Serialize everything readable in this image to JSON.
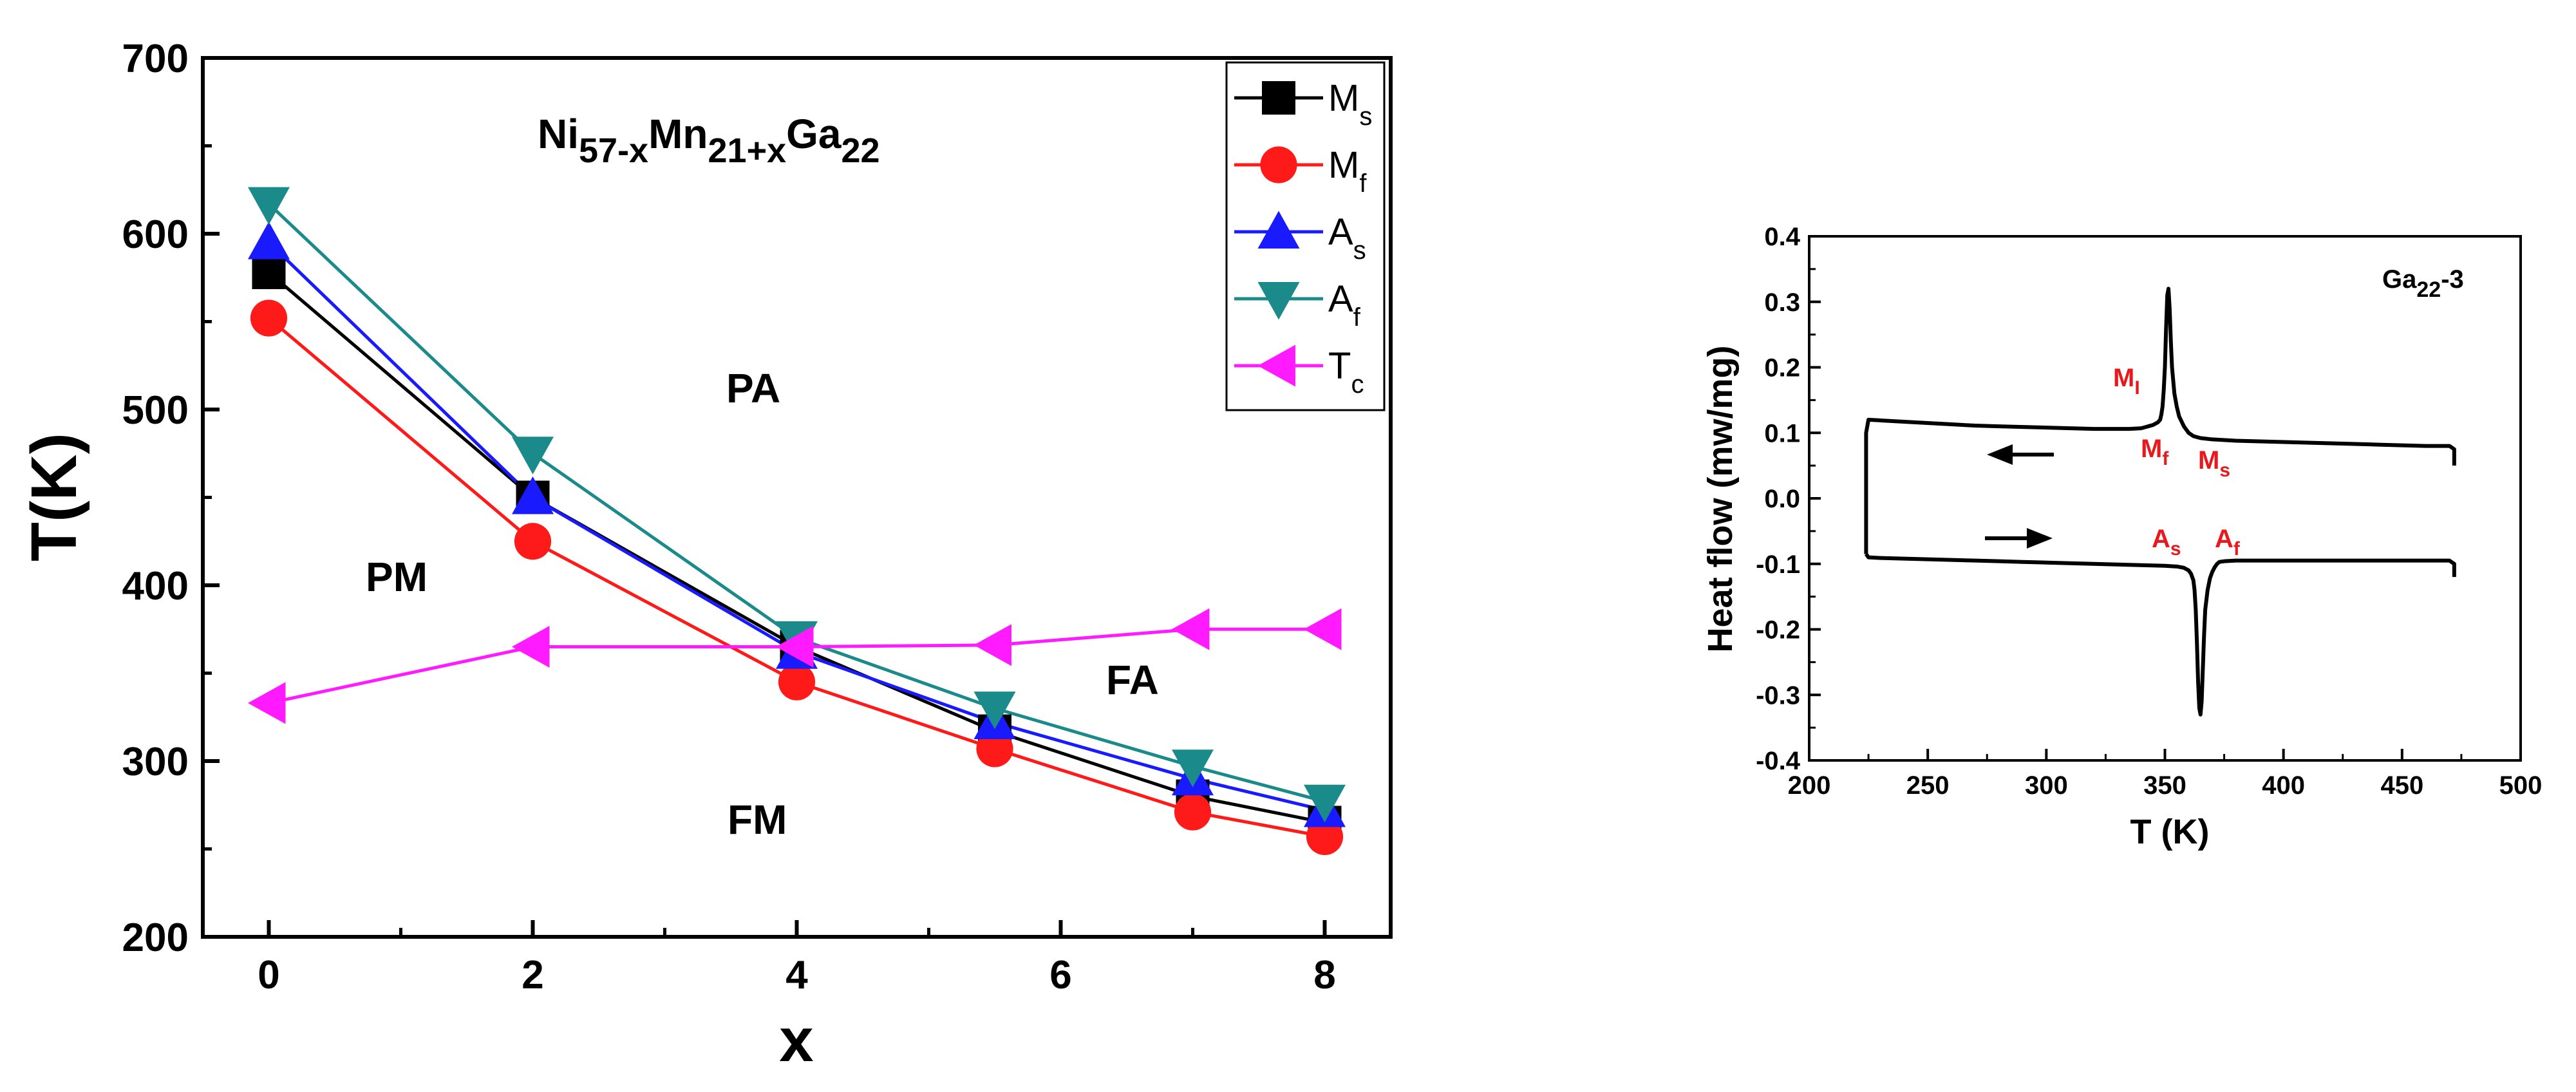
{
  "chart_data": [
    {
      "type": "line",
      "title": "",
      "formula": {
        "a": "Ni",
        "b": "57-x",
        "c": "Mn",
        "d": "21+x",
        "e": "Ga",
        "f": "22"
      },
      "xlabel": "x",
      "ylabel": "T(K)",
      "xlim": [
        -0.5,
        8.5
      ],
      "ylim": [
        200,
        700
      ],
      "xticks": [
        "0",
        "2",
        "4",
        "6",
        "8"
      ],
      "yticks": [
        "200",
        "300",
        "400",
        "500",
        "600",
        "700"
      ],
      "legend_position": "top-right",
      "grid": false,
      "region_labels": [
        "PA",
        "PM",
        "FA",
        "FM"
      ],
      "series": [
        {
          "name": "M",
          "sub": "s",
          "color": "#000000",
          "marker": "square",
          "x": [
            0,
            2,
            4,
            5.5,
            7,
            8
          ],
          "y": [
            578,
            450,
            365,
            317,
            280,
            265
          ]
        },
        {
          "name": "M",
          "sub": "f",
          "color": "#ff1a1a",
          "marker": "circle",
          "x": [
            0,
            2,
            4,
            5.5,
            7,
            8
          ],
          "y": [
            552,
            425,
            345,
            307,
            271,
            257
          ]
        },
        {
          "name": "A",
          "sub": "s",
          "color": "#1a1aff",
          "marker": "triangle-up",
          "x": [
            0,
            2,
            4,
            5.5,
            7,
            8
          ],
          "y": [
            595,
            450,
            362,
            322,
            290,
            272
          ]
        },
        {
          "name": "A",
          "sub": "f",
          "color": "#1a8a8a",
          "marker": "triangle-down",
          "x": [
            0,
            2,
            4,
            5.5,
            7,
            8
          ],
          "y": [
            617,
            475,
            370,
            330,
            297,
            277
          ]
        },
        {
          "name": "T",
          "sub": "c",
          "color": "#ff1aff",
          "marker": "triangle-left",
          "x": [
            0,
            2,
            4,
            5.5,
            7,
            8
          ],
          "y": [
            333,
            365,
            365,
            366,
            375,
            375
          ]
        }
      ]
    },
    {
      "type": "line",
      "title": "",
      "sample_label": {
        "a": "Ga",
        "b": "22",
        "c": "-3"
      },
      "xlabel": "T (K)",
      "ylabel": "Heat flow (mw/mg)",
      "xlim": [
        200,
        500
      ],
      "ylim": [
        -0.4,
        0.4
      ],
      "xticks": [
        "200",
        "250",
        "300",
        "350",
        "400",
        "450",
        "500"
      ],
      "yticks": [
        "-0.4",
        "-0.3",
        "-0.2",
        "-0.1",
        "0.0",
        "0.1",
        "0.2",
        "0.3",
        "0.4"
      ],
      "grid": false,
      "annotations": [
        {
          "a": "M",
          "b": "I"
        },
        {
          "a": "M",
          "b": "f"
        },
        {
          "a": "M",
          "b": "s"
        },
        {
          "a": "A",
          "b": "s"
        },
        {
          "a": "A",
          "b": "f"
        }
      ],
      "annotation_color": "#e8191c",
      "series": [
        {
          "name": "",
          "color": "#000000",
          "x": [
            472,
            472,
            470,
            460,
            450,
            440,
            430,
            420,
            410,
            400,
            390,
            380,
            370,
            365,
            362,
            360,
            358,
            356,
            355,
            354,
            353,
            352.5,
            352,
            351.5,
            351,
            350.5,
            350,
            349.5,
            349,
            348.5,
            348,
            347,
            346,
            345,
            344,
            343,
            342,
            341,
            340,
            335,
            330,
            320,
            310,
            300,
            290,
            280,
            270,
            260,
            250,
            240,
            230,
            225,
            224,
            224,
            224
          ],
          "y": [
            0.05,
            0.075,
            0.08,
            0.08,
            0.081,
            0.082,
            0.083,
            0.084,
            0.085,
            0.086,
            0.087,
            0.088,
            0.09,
            0.092,
            0.095,
            0.1,
            0.11,
            0.125,
            0.14,
            0.16,
            0.2,
            0.24,
            0.29,
            0.32,
            0.31,
            0.26,
            0.2,
            0.165,
            0.14,
            0.128,
            0.12,
            0.116,
            0.114,
            0.112,
            0.111,
            0.11,
            0.109,
            0.108,
            0.107,
            0.106,
            0.106,
            0.106,
            0.107,
            0.108,
            0.109,
            0.11,
            0.111,
            0.113,
            0.115,
            0.117,
            0.119,
            0.12,
            0.1,
            0.0,
            -0.085
          ]
        },
        {
          "name": "",
          "color": "#000000",
          "x": [
            224,
            225,
            230,
            240,
            250,
            260,
            270,
            280,
            290,
            300,
            310,
            320,
            330,
            340,
            350,
            355,
            358,
            360,
            361,
            362,
            362.5,
            363,
            363.5,
            364,
            364.5,
            365,
            365.5,
            366,
            366.5,
            367,
            368,
            369,
            370,
            371,
            372,
            373,
            375,
            380,
            390,
            400,
            410,
            420,
            430,
            440,
            450,
            460,
            470,
            472,
            472
          ],
          "y": [
            -0.085,
            -0.09,
            -0.091,
            -0.092,
            -0.093,
            -0.094,
            -0.095,
            -0.096,
            -0.097,
            -0.098,
            -0.099,
            -0.1,
            -0.101,
            -0.102,
            -0.103,
            -0.104,
            -0.106,
            -0.11,
            -0.115,
            -0.125,
            -0.14,
            -0.17,
            -0.22,
            -0.28,
            -0.32,
            -0.33,
            -0.31,
            -0.26,
            -0.21,
            -0.17,
            -0.14,
            -0.122,
            -0.112,
            -0.105,
            -0.1,
            -0.097,
            -0.096,
            -0.095,
            -0.095,
            -0.095,
            -0.095,
            -0.095,
            -0.095,
            -0.095,
            -0.095,
            -0.095,
            -0.095,
            -0.1,
            -0.12
          ]
        }
      ]
    }
  ]
}
